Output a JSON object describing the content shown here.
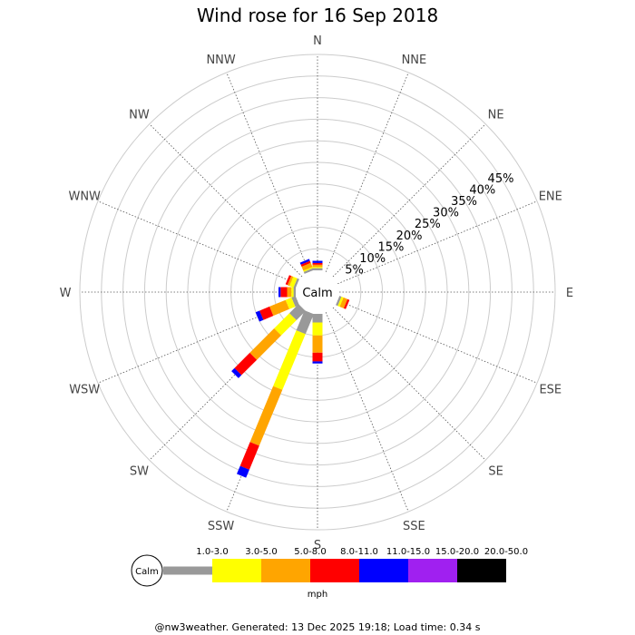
{
  "chart_data": {
    "type": "polar-bar",
    "title": "Wind rose for 16 Sep 2018",
    "calm_label": "Calm",
    "directions": [
      "N",
      "NNE",
      "NE",
      "ENE",
      "E",
      "ESE",
      "SE",
      "SSE",
      "S",
      "SSW",
      "SW",
      "WSW",
      "W",
      "WNW",
      "NW",
      "NNW"
    ],
    "radial_ticks": [
      "5%",
      "10%",
      "15%",
      "20%",
      "25%",
      "30%",
      "35%",
      "40%",
      "45%"
    ],
    "radial_values": [
      5,
      10,
      15,
      20,
      25,
      30,
      35,
      40,
      45
    ],
    "rmax": 50,
    "unit_label": "mph",
    "bins": [
      {
        "label": "1.0-3.0",
        "color": "#999999"
      },
      {
        "label": "3.0-5.0",
        "color": "#ffff00"
      },
      {
        "label": "5.0-8.0",
        "color": "#ffa500"
      },
      {
        "label": "8.0-11.0",
        "color": "#ff0000"
      },
      {
        "label": "11.0-15.0",
        "color": "#0000ff"
      },
      {
        "label": "15.0-20.0",
        "color": "#a020f0"
      },
      {
        "label": "20.0-50.0",
        "color": "#000000"
      }
    ],
    "series": [
      {
        "direction": "N",
        "values": [
          0.5,
          0.3,
          0.5,
          0.4,
          0.5,
          0,
          0
        ]
      },
      {
        "direction": "NNE",
        "values": [
          0,
          0,
          0,
          0,
          0,
          0,
          0
        ]
      },
      {
        "direction": "NE",
        "values": [
          0,
          0,
          0,
          0,
          0,
          0,
          0
        ]
      },
      {
        "direction": "ENE",
        "values": [
          0,
          0,
          0,
          0,
          0,
          0,
          0
        ]
      },
      {
        "direction": "E",
        "values": [
          0,
          0,
          0,
          0,
          0,
          0,
          0
        ]
      },
      {
        "direction": "ESE",
        "values": [
          0.5,
          0.5,
          1.0,
          0.5,
          0,
          0,
          0
        ]
      },
      {
        "direction": "SE",
        "values": [
          0,
          0,
          0,
          0,
          0,
          0,
          0
        ]
      },
      {
        "direction": "SSE",
        "values": [
          0,
          0,
          0,
          0,
          0,
          0,
          0
        ]
      },
      {
        "direction": "S",
        "values": [
          2.0,
          3.0,
          4.0,
          2.0,
          0.5,
          0,
          0
        ]
      },
      {
        "direction": "SSW",
        "values": [
          5.0,
          14.0,
          14.0,
          6.0,
          2.0,
          0,
          0
        ]
      },
      {
        "direction": "SW",
        "values": [
          3.0,
          5.0,
          8.0,
          5.0,
          1.0,
          0,
          0
        ]
      },
      {
        "direction": "WSW",
        "values": [
          1.0,
          1.5,
          4.0,
          2.5,
          1.0,
          0,
          0
        ]
      },
      {
        "direction": "W",
        "values": [
          0.5,
          0.5,
          1.0,
          1.5,
          0.5,
          0,
          0
        ]
      },
      {
        "direction": "WNW",
        "values": [
          0.5,
          1.0,
          0.5,
          0.5,
          0,
          0,
          0
        ]
      },
      {
        "direction": "NW",
        "values": [
          0,
          0,
          0,
          0,
          0,
          0,
          0
        ]
      },
      {
        "direction": "NNW",
        "values": [
          0.5,
          0.3,
          1.0,
          0.5,
          0.5,
          0,
          0
        ]
      }
    ],
    "grid": true
  },
  "footer": "@nw3weather. Generated: 13 Dec 2025 19:18; Load time: 0.34 s"
}
